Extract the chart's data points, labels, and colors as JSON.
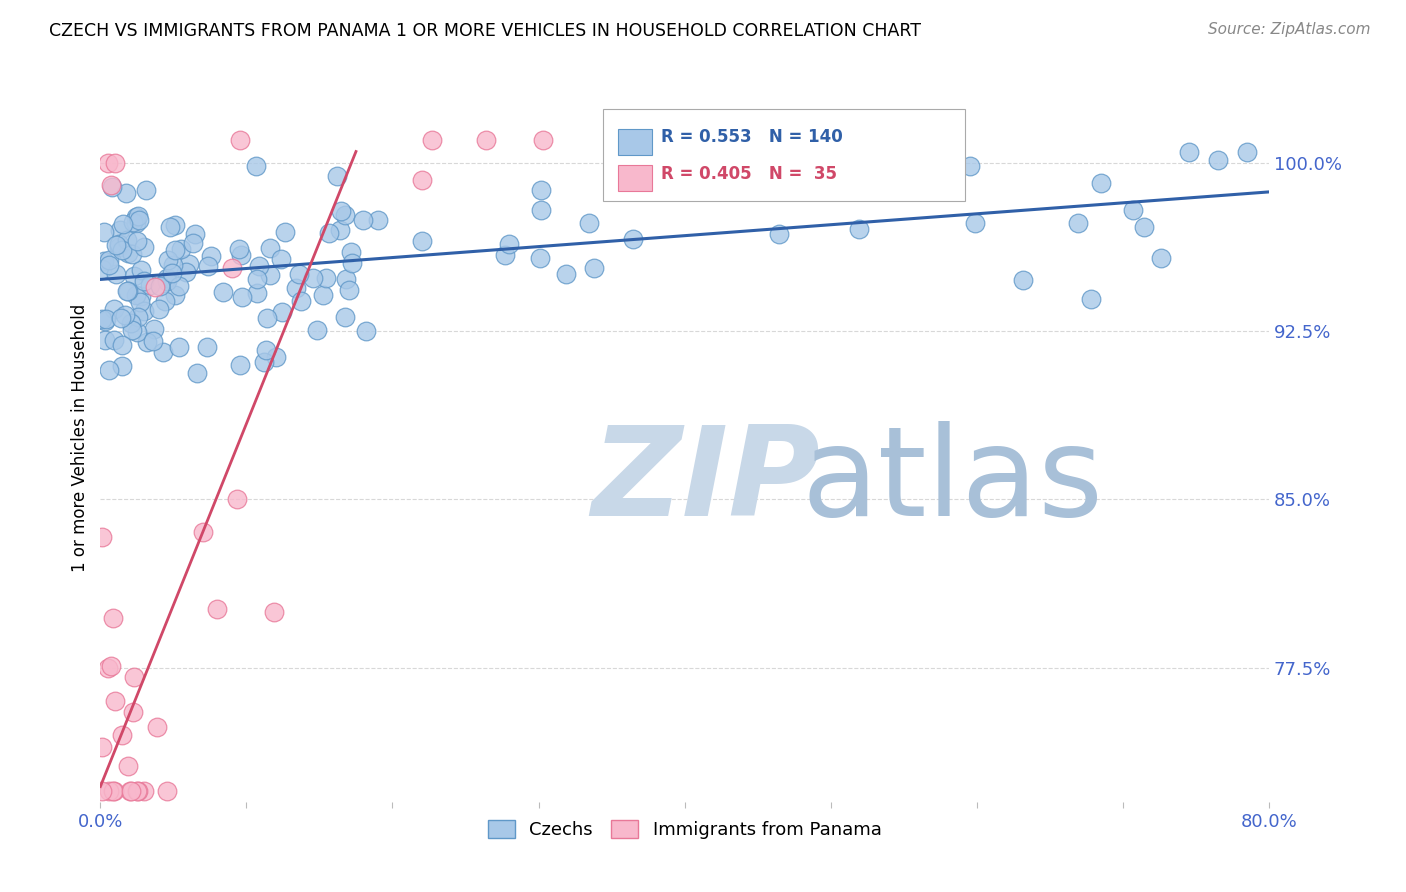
{
  "title": "CZECH VS IMMIGRANTS FROM PANAMA 1 OR MORE VEHICLES IN HOUSEHOLD CORRELATION CHART",
  "source": "Source: ZipAtlas.com",
  "ylabel": "1 or more Vehicles in Household",
  "ytick_labels": [
    "77.5%",
    "85.0%",
    "92.5%",
    "100.0%"
  ],
  "ytick_values": [
    0.775,
    0.85,
    0.925,
    1.0
  ],
  "xmin": 0.0,
  "xmax": 0.8,
  "ymin": 0.715,
  "ymax": 1.04,
  "R_blue": 0.553,
  "N_blue": 140,
  "R_pink": 0.405,
  "N_pink": 35,
  "label_blue": "Czechs",
  "label_pink": "Immigrants from Panama",
  "blue_line_x0": 0.0,
  "blue_line_x1": 0.8,
  "blue_line_y0": 0.948,
  "blue_line_y1": 0.987,
  "pink_line_x0": 0.0,
  "pink_line_x1": 0.175,
  "pink_line_y0": 0.722,
  "pink_line_y1": 1.005,
  "blue_dot_color": "#a8c8e8",
  "blue_dot_edge": "#6098c8",
  "pink_dot_color": "#f8b8cc",
  "pink_dot_edge": "#e87898",
  "blue_line_color": "#3060a8",
  "pink_line_color": "#d04868",
  "watermark_zip_color": "#c8d8e8",
  "watermark_atlas_color": "#a8c0d8",
  "background_color": "#ffffff",
  "grid_color": "#d8d8d8",
  "title_color": "#000000",
  "source_color": "#888888",
  "axis_label_color": "#000000",
  "tick_color": "#4466cc"
}
